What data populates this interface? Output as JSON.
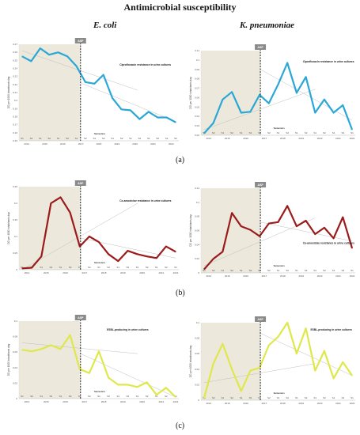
{
  "figure": {
    "title": "Antimicrobial susceptibility",
    "col_left": "E. coli",
    "col_right": "K. pneumoniae",
    "row_labels": [
      "(a)",
      "(b)",
      "(c)"
    ]
  },
  "common": {
    "ylabel": "DD per 1000 inhabitants day",
    "xlabel": "Semesters",
    "asp_label": "ASP",
    "semester_ticks": [
      "S1",
      "S2",
      "S1",
      "S2",
      "S1",
      "S2",
      "S1",
      "S2",
      "S1",
      "S2",
      "S1",
      "S2",
      "S1",
      "S2",
      "S1",
      "S2",
      "S1",
      "S2"
    ],
    "year_ticks": [
      "2014",
      "2015",
      "2016",
      "2017",
      "2018",
      "2019",
      "2020",
      "2021",
      "2022"
    ]
  },
  "chart_data": [
    {
      "type": "line",
      "organism": "E. coli",
      "annotation": "Ciprofloxacin resistance in urine cultures",
      "y_ticks": [
        "0.27",
        "0.26",
        "0.25",
        "0.24",
        "0.23",
        "0.22",
        "0.21",
        "0.2",
        "0.19",
        "0.18",
        "0.17",
        "0.16",
        "0.15"
      ],
      "ylim": [
        0.15,
        0.27
      ],
      "values": [
        0.255,
        0.249,
        0.265,
        0.257,
        0.26,
        0.255,
        0.243,
        0.223,
        0.221,
        0.232,
        0.203,
        0.189,
        0.188,
        0.177,
        0.186,
        0.179,
        0.179,
        0.173
      ],
      "trend": [
        [
          0.262,
          0.213
        ],
        [
          0.222,
          0.174
        ]
      ],
      "color": "#2aa7d6"
    },
    {
      "type": "line",
      "organism": "K. pneumoniae",
      "annotation": "Ciprofloxacin resistance in urine cultures",
      "y_ticks": [
        "0.11",
        "0.1",
        "0.09",
        "0.08",
        "0.07",
        "0.06",
        "0.05",
        "0.04",
        "0.03",
        "0.02"
      ],
      "ylim": [
        0.02,
        0.11
      ],
      "values": [
        0.022,
        0.033,
        0.058,
        0.066,
        0.044,
        0.045,
        0.063,
        0.054,
        0.074,
        0.097,
        0.065,
        0.082,
        0.044,
        0.058,
        0.044,
        0.052,
        0.026
      ],
      "trend": [
        [
          0.026,
          0.069
        ],
        [
          0.09,
          0.036
        ]
      ],
      "color": "#2aa7d6"
    },
    {
      "type": "line",
      "organism": "E. coli",
      "annotation": "Co-amoxiclav resistance in urine cultures",
      "y_ticks": [
        "0.25",
        "0.2",
        "0.15",
        "0.1",
        "0.05",
        "0"
      ],
      "ylim": [
        0,
        0.25
      ],
      "values": [
        0.004,
        0.006,
        0.04,
        0.2,
        0.218,
        0.172,
        0.07,
        0.1,
        0.083,
        0.047,
        0.026,
        0.057,
        0.047,
        0.04,
        0.035,
        0.07,
        0.054
      ],
      "trend": [
        [
          0.0,
          0.2
        ],
        [
          0.095,
          0.035
        ]
      ],
      "color": "#9b1b1b"
    },
    {
      "type": "line",
      "organism": "K. pneumoniae",
      "annotation": "Co-amoxiclav resistance in urine cultures",
      "y_ticks": [
        "0.12",
        "0.1",
        "0.08",
        "0.06",
        "0.04",
        "0.02",
        "0"
      ],
      "ylim": [
        0,
        0.12
      ],
      "values": [
        0.005,
        0.02,
        0.03,
        0.085,
        0.066,
        0.061,
        0.052,
        0.07,
        0.072,
        0.095,
        0.066,
        0.074,
        0.055,
        0.064,
        0.049,
        0.079,
        0.035
      ],
      "trend": [
        [
          0.01,
          0.078
        ],
        [
          0.072,
          0.045
        ]
      ],
      "color": "#9b1b1b"
    },
    {
      "type": "line",
      "organism": "E. coli",
      "annotation": "ESBL-producing in urine cultures",
      "y_ticks": [
        "0.1",
        "0.08",
        "0.06",
        "0.04",
        "0.02",
        "0"
      ],
      "ylim": [
        0,
        0.1
      ],
      "values": [
        0.063,
        0.061,
        0.064,
        0.069,
        0.064,
        0.082,
        0.038,
        0.033,
        0.061,
        0.027,
        0.018,
        0.018,
        0.015,
        0.021,
        0.005,
        0.014,
        0.002
      ],
      "trend": [
        [
          0.072,
          0.058
        ],
        [
          0.058,
          0.002
        ]
      ],
      "color": "#dfe84a"
    },
    {
      "type": "line",
      "organism": "K. pneumoniae",
      "annotation": "ESBL-producing in urine cultures",
      "y_ticks": [
        "0.1",
        "0.08",
        "0.06",
        "0.04",
        "0.02",
        "0"
      ],
      "ylim": [
        0,
        0.11
      ],
      "values": [
        0.003,
        0.052,
        0.08,
        0.044,
        0.013,
        0.042,
        0.046,
        0.078,
        0.09,
        0.11,
        0.066,
        0.102,
        0.042,
        0.07,
        0.031,
        0.054,
        0.035
      ],
      "trend": [
        [
          0.025,
          0.052
        ],
        [
          0.095,
          0.035
        ]
      ],
      "color": "#dfe84a"
    }
  ]
}
